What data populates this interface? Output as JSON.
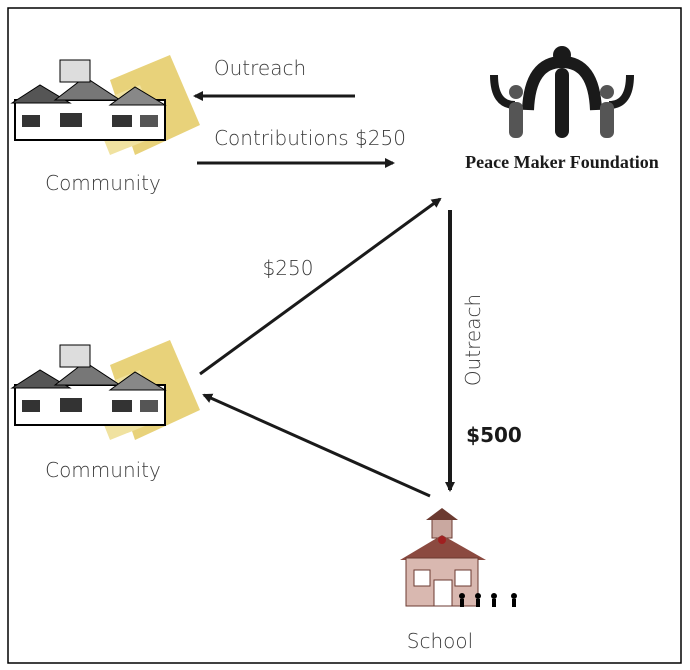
{
  "nodes": [
    {
      "label": "Community"
    },
    {
      "label": "Peace Maker Foundation"
    },
    {
      "label": "Community"
    },
    {
      "label": "School"
    }
  ],
  "edges": [
    {
      "label": "Outreach"
    },
    {
      "label": "Contributions $250"
    },
    {
      "label": "$250"
    },
    {
      "label": "Outreach"
    },
    {
      "label": "$500"
    }
  ]
}
